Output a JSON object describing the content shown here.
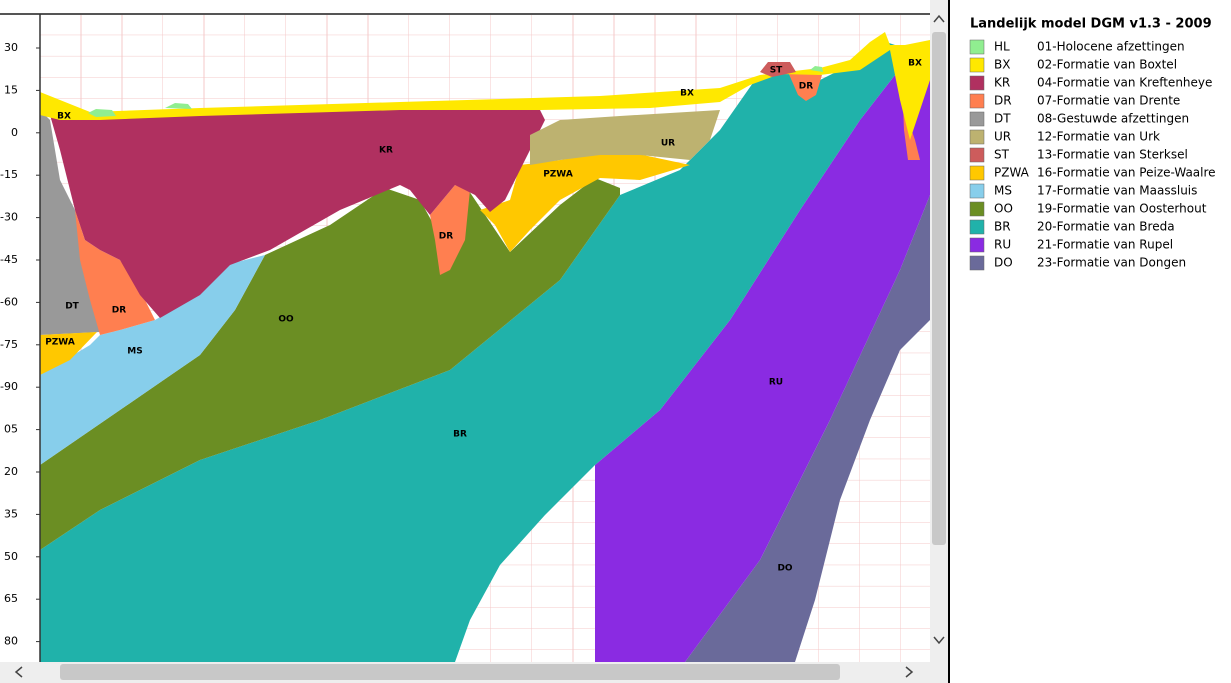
{
  "axis": {
    "labels": [
      "30",
      "15",
      "0",
      "-15",
      "-30",
      "-45",
      "-60",
      "-75",
      "-90",
      "05",
      "20",
      "35",
      "50",
      "65",
      "80"
    ]
  },
  "section_labels": [
    "BX",
    "KR",
    "BX",
    "ST",
    "DR",
    "BX",
    "UR",
    "PZWA",
    "DR",
    "DT",
    "DR",
    "OO",
    "PZWA",
    "MS",
    "RU",
    "BR",
    "DO"
  ],
  "legend": {
    "title": "Landelijk model DGM v1.3 - 2009",
    "entries": [
      {
        "code": "HL",
        "name": "01-Holocene afzettingen",
        "color": "#90ee90"
      },
      {
        "code": "BX",
        "name": "02-Formatie van Boxtel",
        "color": "#ffe800"
      },
      {
        "code": "KR",
        "name": "04-Formatie van Kreftenheye",
        "color": "#b03060"
      },
      {
        "code": "DR",
        "name": "07-Formatie van Drente",
        "color": "#ff7f50"
      },
      {
        "code": "DT",
        "name": "08-Gestuwde afzettingen",
        "color": "#999999"
      },
      {
        "code": "UR",
        "name": "12-Formatie van Urk",
        "color": "#bdb270"
      },
      {
        "code": "ST",
        "name": "13-Formatie van Sterksel",
        "color": "#cd5c5c"
      },
      {
        "code": "PZWA",
        "name": "16-Formatie van Peize-Waalre",
        "color": "#ffc800"
      },
      {
        "code": "MS",
        "name": "17-Formatie van Maassluis",
        "color": "#87ceeb"
      },
      {
        "code": "OO",
        "name": "19-Formatie van Oosterhout",
        "color": "#6b8e23"
      },
      {
        "code": "BR",
        "name": "20-Formatie van Breda",
        "color": "#20b2aa"
      },
      {
        "code": "RU",
        "name": "21-Formatie van Rupel",
        "color": "#8a2be2"
      },
      {
        "code": "DO",
        "name": "23-Formatie van Dongen",
        "color": "#6a6a9a"
      }
    ]
  }
}
